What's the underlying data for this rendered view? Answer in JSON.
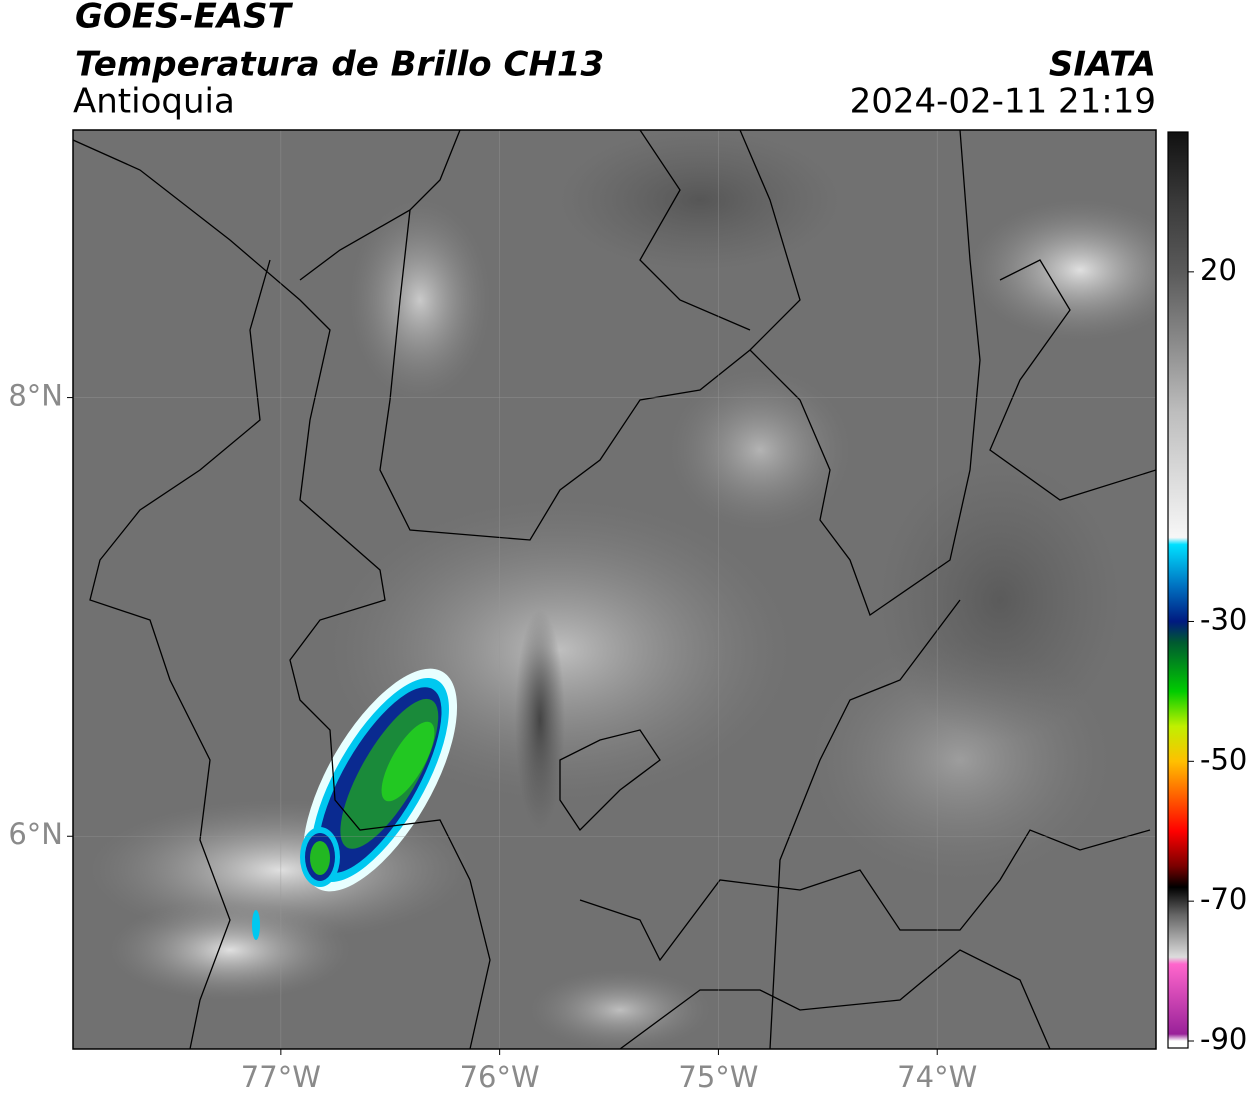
{
  "chart_data": {
    "type": "map",
    "title": "GOES-EAST",
    "subtitle": "Temperatura de Brillo CH13",
    "region": "Antioquia",
    "source": "SIATA",
    "datetime": "2024-02-11 21:19",
    "xlim": [
      -77.95,
      -73
    ],
    "ylim": [
      5.03,
      9.22
    ],
    "xticks": [
      {
        "value": -77,
        "label": "77°W"
      },
      {
        "value": -76,
        "label": "76°W"
      },
      {
        "value": -75,
        "label": "75°W"
      },
      {
        "value": -74,
        "label": "74°W"
      }
    ],
    "yticks": [
      {
        "value": 6,
        "label": "6°N"
      },
      {
        "value": 8,
        "label": "8°N"
      }
    ],
    "grid": true,
    "colorbar": {
      "clim": [
        -91,
        40
      ],
      "ticks": [
        20,
        -30,
        -50,
        -70,
        -90
      ],
      "stops": [
        {
          "value": 40,
          "color": "#111111"
        },
        {
          "value": 30,
          "color": "#3a3a3a"
        },
        {
          "value": 20,
          "color": "#5a5a5a"
        },
        {
          "value": 10,
          "color": "#8a8a8a"
        },
        {
          "value": 0,
          "color": "#bdbdbd"
        },
        {
          "value": -18,
          "color": "#f7f7f7"
        },
        {
          "value": -19,
          "color": "#00e0ff"
        },
        {
          "value": -25,
          "color": "#0070c0"
        },
        {
          "value": -30,
          "color": "#001a80"
        },
        {
          "value": -33,
          "color": "#005a30"
        },
        {
          "value": -40,
          "color": "#00cc00"
        },
        {
          "value": -45,
          "color": "#c0f000"
        },
        {
          "value": -50,
          "color": "#ffc000"
        },
        {
          "value": -55,
          "color": "#ff6000"
        },
        {
          "value": -60,
          "color": "#ff0000"
        },
        {
          "value": -65,
          "color": "#7a0000"
        },
        {
          "value": -68,
          "color": "#000000"
        },
        {
          "value": -72,
          "color": "#666666"
        },
        {
          "value": -78,
          "color": "#dddddd"
        },
        {
          "value": -79,
          "color": "#ff66cc"
        },
        {
          "value": -89,
          "color": "#992299"
        },
        {
          "value": -90,
          "color": "#ffffff"
        }
      ]
    }
  }
}
